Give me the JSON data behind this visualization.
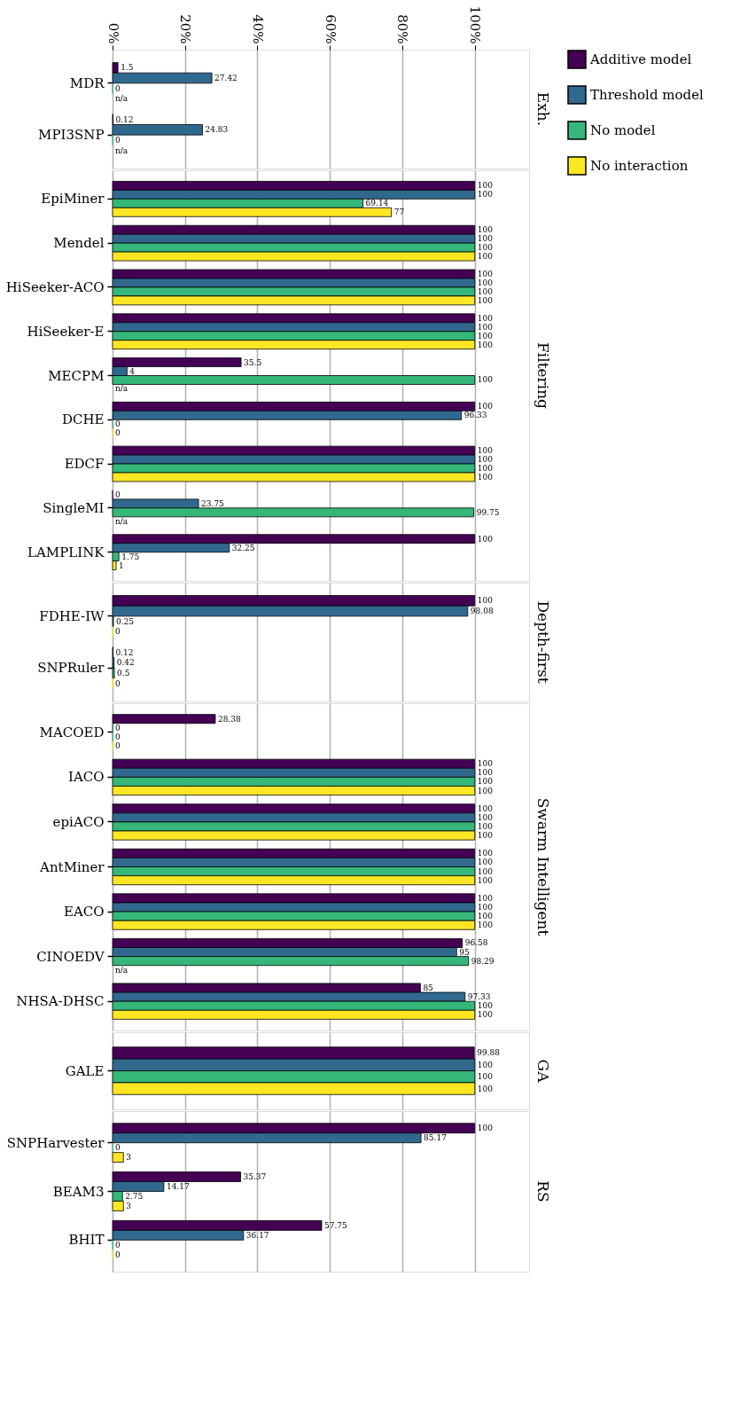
{
  "chart_data": [
    {
      "type": "bar",
      "orientation": "horizontal",
      "title": "Exh.",
      "categories": [
        "MDR",
        "MPI3SNP"
      ],
      "xlim": [
        0,
        115
      ],
      "xticks": [
        {
          "value": 0,
          "label": "0%"
        },
        {
          "value": 20,
          "label": "20%"
        },
        {
          "value": 40,
          "label": "40%"
        },
        {
          "value": 60,
          "label": "60%"
        },
        {
          "value": 80,
          "label": "80%"
        },
        {
          "value": 100,
          "label": "100%"
        }
      ],
      "grid": "x",
      "legend": "right",
      "series": [
        {
          "name": "Additive model",
          "color": "#440154",
          "values": [
            1.5,
            0.12
          ],
          "value_labels": [
            "1.5",
            "0.12"
          ]
        },
        {
          "name": "Threshold model",
          "color": "#31688e",
          "values": [
            27.42,
            24.83
          ],
          "value_labels": [
            "27.42",
            "24.83"
          ]
        },
        {
          "name": "No model",
          "color": "#35b779",
          "values": [
            0,
            0
          ],
          "value_labels": [
            "0",
            "0"
          ]
        },
        {
          "name": "No interaction",
          "color": "#fde725",
          "values": [
            null,
            null
          ],
          "value_labels": [
            "n/a",
            "n/a"
          ]
        }
      ]
    },
    {
      "type": "bar",
      "orientation": "horizontal",
      "title": "Filtering",
      "categories": [
        "EpiMiner",
        "Mendel",
        "HiSeeker-ACO",
        "HiSeeker-E",
        "MECPM",
        "DCHE",
        "EDCF",
        "SingleMI",
        "LAMPLINK"
      ],
      "xlim": [
        0,
        115
      ],
      "xticks": [
        {
          "value": 0,
          "label": null
        },
        {
          "value": 20,
          "label": null
        },
        {
          "value": 40,
          "label": null
        },
        {
          "value": 60,
          "label": null
        },
        {
          "value": 80,
          "label": null
        },
        {
          "value": 100,
          "label": null
        }
      ],
      "grid": "x",
      "tick_labels": "y",
      "series": [
        {
          "color": "#440154",
          "values": [
            100,
            100,
            100,
            100,
            35.5,
            100,
            100,
            0,
            100
          ],
          "value_labels": [
            "100",
            "100",
            "100",
            "100",
            "35.5",
            "100",
            "100",
            "0",
            "100"
          ]
        },
        {
          "color": "#31688e",
          "values": [
            100,
            100,
            100,
            100,
            4,
            96.33,
            100,
            23.75,
            32.25
          ],
          "value_labels": [
            "100",
            "100",
            "100",
            "100",
            "4",
            "96.33",
            "100",
            "23.75",
            "32.25"
          ]
        },
        {
          "color": "#35b779",
          "values": [
            69.14,
            100,
            100,
            100,
            100,
            0,
            100,
            99.75,
            1.75
          ],
          "value_labels": [
            "69.14",
            "100",
            "100",
            "100",
            "100",
            "0",
            "100",
            "99.75",
            "1.75"
          ]
        },
        {
          "color": "#fde725",
          "values": [
            77,
            100,
            100,
            100,
            null,
            0,
            100,
            null,
            1
          ],
          "value_labels": [
            "77",
            "100",
            "100",
            "100",
            "n/a",
            "0",
            "100",
            "n/a",
            "1"
          ]
        }
      ]
    },
    {
      "type": "bar",
      "orientation": "horizontal",
      "title": "Depth-first",
      "categories": [
        "FDHE-IW",
        "SNPRuler"
      ],
      "xlim": [
        0,
        115
      ],
      "xticks": [
        {
          "value": 0,
          "label": null
        },
        {
          "value": 20,
          "label": null
        },
        {
          "value": 40,
          "label": null
        },
        {
          "value": 60,
          "label": null
        },
        {
          "value": 80,
          "label": null
        },
        {
          "value": 100,
          "label": null
        }
      ],
      "grid": "x",
      "tick_labels": "y",
      "series": [
        {
          "color": "#440154",
          "values": [
            100,
            0.12
          ],
          "value_labels": [
            "100",
            "0.12"
          ]
        },
        {
          "color": "#31688e",
          "values": [
            98.08,
            0.42
          ],
          "value_labels": [
            "98.08",
            "0.42"
          ]
        },
        {
          "color": "#35b779",
          "values": [
            0.25,
            0.5
          ],
          "value_labels": [
            "0.25",
            "0.5"
          ]
        },
        {
          "color": "#fde725",
          "values": [
            0,
            0
          ],
          "value_labels": [
            "0",
            "0"
          ]
        }
      ]
    },
    {
      "type": "bar",
      "orientation": "horizontal",
      "title": "Swarm Intelligent",
      "categories": [
        "MACOED",
        "IACO",
        "epiACO",
        "AntMiner",
        "EACO",
        "CINOEDV",
        "NHSA-DHSC"
      ],
      "xlim": [
        0,
        115
      ],
      "xticks": [
        {
          "value": 0,
          "label": null
        },
        {
          "value": 20,
          "label": null
        },
        {
          "value": 40,
          "label": null
        },
        {
          "value": 60,
          "label": null
        },
        {
          "value": 80,
          "label": null
        },
        {
          "value": 100,
          "label": null
        }
      ],
      "grid": "x",
      "tick_labels": "y",
      "series": [
        {
          "color": "#440154",
          "values": [
            28.38,
            100,
            100,
            100,
            100,
            96.58,
            85
          ],
          "value_labels": [
            "28.38",
            "100",
            "100",
            "100",
            "100",
            "96.58",
            "85"
          ]
        },
        {
          "color": "#31688e",
          "values": [
            0,
            100,
            100,
            100,
            100,
            95,
            97.33
          ],
          "value_labels": [
            "0",
            "100",
            "100",
            "100",
            "100",
            "95",
            "97.33"
          ]
        },
        {
          "color": "#35b779",
          "values": [
            0,
            100,
            100,
            100,
            100,
            98.29,
            100
          ],
          "value_labels": [
            "0",
            "100",
            "100",
            "100",
            "100",
            "98.29",
            "100"
          ]
        },
        {
          "color": "#fde725",
          "values": [
            0,
            100,
            100,
            100,
            100,
            null,
            100
          ],
          "value_labels": [
            "0",
            "100",
            "100",
            "100",
            "100",
            "n/a",
            "100"
          ]
        }
      ]
    },
    {
      "type": "bar",
      "orientation": "horizontal",
      "title": "GA",
      "categories": [
        "GALE"
      ],
      "xlim": [
        0,
        115
      ],
      "xticks": [
        {
          "value": 0,
          "label": null
        },
        {
          "value": 20,
          "label": null
        },
        {
          "value": 40,
          "label": null
        },
        {
          "value": 60,
          "label": null
        },
        {
          "value": 80,
          "label": null
        },
        {
          "value": 100,
          "label": null
        }
      ],
      "grid": "x",
      "tick_labels": "y",
      "series": [
        {
          "color": "#440154",
          "values": [
            99.88
          ],
          "value_labels": [
            "99.88"
          ]
        },
        {
          "color": "#31688e",
          "values": [
            100
          ],
          "value_labels": [
            "100"
          ]
        },
        {
          "color": "#35b779",
          "values": [
            100
          ],
          "value_labels": [
            "100"
          ]
        },
        {
          "color": "#fde725",
          "values": [
            100
          ],
          "value_labels": [
            "100"
          ]
        }
      ]
    },
    {
      "type": "bar",
      "orientation": "horizontal",
      "title": "RS",
      "categories": [
        "SNPHarvester",
        "BEAM3",
        "BHIT"
      ],
      "xlim": [
        0,
        115
      ],
      "xticks": [
        {
          "value": 0,
          "label": null
        },
        {
          "value": 20,
          "label": null
        },
        {
          "value": 40,
          "label": null
        },
        {
          "value": 60,
          "label": null
        },
        {
          "value": 80,
          "label": null
        },
        {
          "value": 100,
          "label": null
        }
      ],
      "grid": "x",
      "tick_labels": "y",
      "series": [
        {
          "color": "#440154",
          "values": [
            100,
            35.37,
            57.75
          ],
          "value_labels": [
            "100",
            "35.37",
            "57.75"
          ]
        },
        {
          "color": "#31688e",
          "values": [
            85.17,
            14.17,
            36.17
          ],
          "value_labels": [
            "85.17",
            "14.17",
            "36.17"
          ]
        },
        {
          "color": "#35b779",
          "values": [
            0,
            2.75,
            0
          ],
          "value_labels": [
            "0",
            "2.75",
            "0"
          ]
        },
        {
          "color": "#fde725",
          "values": [
            3,
            3,
            0
          ],
          "value_labels": [
            "3",
            "3",
            "0"
          ]
        }
      ]
    }
  ]
}
